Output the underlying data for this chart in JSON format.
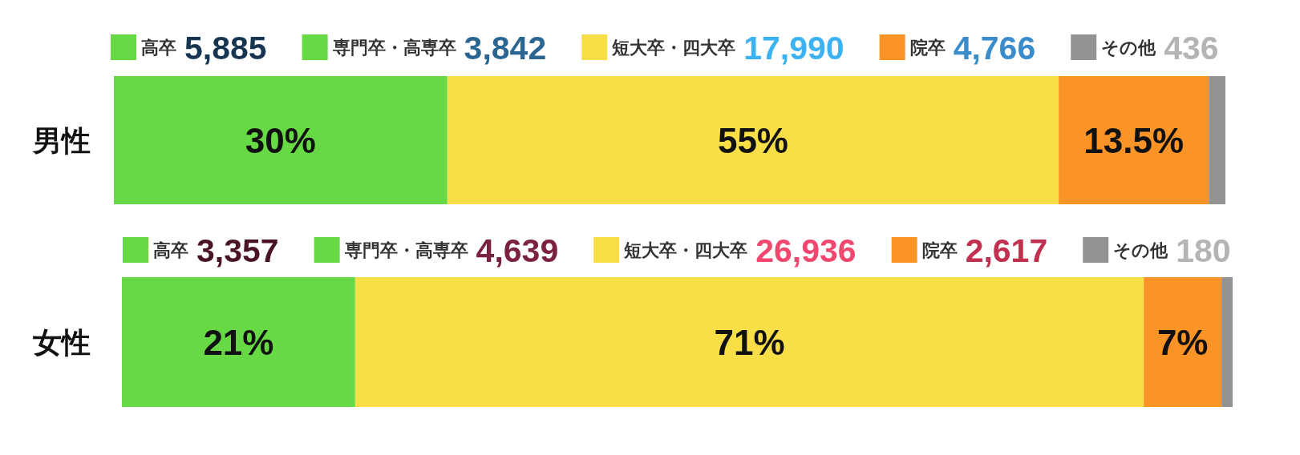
{
  "chart_data": [
    {
      "type": "bar",
      "orientation": "horizontal",
      "stacked": true,
      "legend": "top",
      "categories": [
        "男性"
      ],
      "series": [
        {
          "name": "高卒",
          "color": "#66d945",
          "values": [
            30
          ],
          "value_labels": [
            "30%"
          ]
        },
        {
          "name": "専門卒・高専卒",
          "color": "#66d945",
          "values": [
            null
          ]
        },
        {
          "name": "短大卒・四大卒",
          "color": "#f8df48",
          "values": [
            55
          ],
          "value_labels": [
            "55%"
          ]
        },
        {
          "name": "院卒",
          "color": "#fb9426",
          "values": [
            13.5
          ],
          "value_labels": [
            "13.5%"
          ]
        },
        {
          "name": "その他",
          "color": "#939393",
          "values": [
            1.5
          ],
          "value_labels": [
            null
          ]
        }
      ],
      "annotations": [
        "5,885",
        "3,842",
        "17,990",
        "4,766",
        "436"
      ]
    },
    {
      "type": "bar",
      "orientation": "horizontal",
      "stacked": true,
      "legend": "top",
      "categories": [
        "女性"
      ],
      "series": [
        {
          "name": "高卒",
          "color": "#66d945",
          "values": [
            21
          ],
          "value_labels": [
            "21%"
          ]
        },
        {
          "name": "専門卒・高専卒",
          "color": "#66d945",
          "values": [
            null
          ]
        },
        {
          "name": "短大卒・四大卒",
          "color": "#f8df48",
          "values": [
            71
          ],
          "value_labels": [
            "71%"
          ]
        },
        {
          "name": "院卒",
          "color": "#fb9426",
          "values": [
            7
          ],
          "value_labels": [
            "7%"
          ]
        },
        {
          "name": "その他",
          "color": "#939393",
          "values": [
            1
          ],
          "value_labels": [
            null
          ]
        }
      ],
      "annotations": [
        "3,357",
        "4,639",
        "26,936",
        "2,617",
        "180"
      ]
    }
  ]
}
